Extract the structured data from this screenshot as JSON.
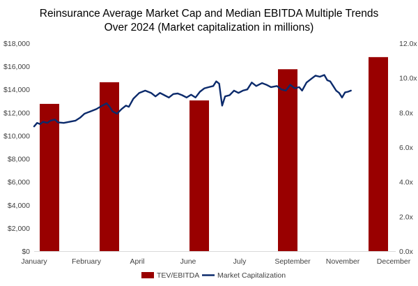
{
  "chart_data": {
    "type": "bar+line",
    "title_lines": [
      "Reinsurance Average Market Cap and Median EBITDA Multiple Trends",
      "Over 2024  (Market capitalization in millions)"
    ],
    "x_tick_labels": [
      "January",
      "February",
      "April",
      "June",
      "July",
      "September",
      "November",
      "December"
    ],
    "y_left": {
      "range": [
        0,
        18000
      ],
      "tick_labels": [
        "$0",
        "$2,000",
        "$4,000",
        "$6,000",
        "$8,000",
        "$10,000",
        "$12,000",
        "$14,000",
        "$16,000",
        "$18,000"
      ]
    },
    "y_right": {
      "range": [
        0,
        12
      ],
      "tick_labels": [
        "0.0x",
        "2.0x",
        "4.0x",
        "6.0x",
        "8.0x",
        "10.0x",
        "12.0x"
      ]
    },
    "grid": false,
    "legend_position": "bottom",
    "bars": {
      "name": "TEV/EBITDA",
      "color": "#990000",
      "axis": "right",
      "categories": [
        "January",
        "February",
        "June",
        "September",
        "December"
      ],
      "values": [
        8.5,
        9.75,
        8.7,
        10.5,
        11.2
      ]
    },
    "line": {
      "name": "Market Capitalization",
      "color": "#0b2a6b",
      "axis": "left",
      "x_unit": "month",
      "points": [
        [
          1.0,
          10800
        ],
        [
          1.1,
          11100
        ],
        [
          1.2,
          11000
        ],
        [
          1.3,
          11200
        ],
        [
          1.45,
          11100
        ],
        [
          1.55,
          11300
        ],
        [
          1.7,
          11400
        ],
        [
          1.8,
          11150
        ],
        [
          2.0,
          11100
        ],
        [
          2.2,
          11200
        ],
        [
          2.4,
          11300
        ],
        [
          2.55,
          11550
        ],
        [
          2.7,
          11900
        ],
        [
          2.9,
          12100
        ],
        [
          3.1,
          12300
        ],
        [
          3.3,
          12600
        ],
        [
          3.45,
          12800
        ],
        [
          3.55,
          12500
        ],
        [
          3.65,
          12100
        ],
        [
          3.8,
          11900
        ],
        [
          3.95,
          12300
        ],
        [
          4.1,
          12600
        ],
        [
          4.2,
          12500
        ],
        [
          4.35,
          13200
        ],
        [
          4.55,
          13700
        ],
        [
          4.75,
          13900
        ],
        [
          4.95,
          13700
        ],
        [
          5.1,
          13400
        ],
        [
          5.25,
          13700
        ],
        [
          5.4,
          13500
        ],
        [
          5.55,
          13300
        ],
        [
          5.7,
          13600
        ],
        [
          5.85,
          13650
        ],
        [
          6.0,
          13500
        ],
        [
          6.15,
          13300
        ],
        [
          6.3,
          13550
        ],
        [
          6.45,
          13300
        ],
        [
          6.6,
          13800
        ],
        [
          6.75,
          14100
        ],
        [
          6.9,
          14200
        ],
        [
          7.05,
          14300
        ],
        [
          7.15,
          14700
        ],
        [
          7.25,
          14500
        ],
        [
          7.3,
          13500
        ],
        [
          7.35,
          12600
        ],
        [
          7.45,
          13400
        ],
        [
          7.6,
          13500
        ],
        [
          7.75,
          13900
        ],
        [
          7.9,
          13700
        ],
        [
          8.05,
          13900
        ],
        [
          8.2,
          14000
        ],
        [
          8.35,
          14600
        ],
        [
          8.5,
          14300
        ],
        [
          8.7,
          14550
        ],
        [
          8.85,
          14400
        ],
        [
          9.0,
          14200
        ],
        [
          9.2,
          14300
        ],
        [
          9.35,
          14000
        ],
        [
          9.5,
          13900
        ],
        [
          9.65,
          14400
        ],
        [
          9.8,
          14100
        ],
        [
          9.95,
          14200
        ],
        [
          10.05,
          13900
        ],
        [
          10.2,
          14600
        ],
        [
          10.35,
          14900
        ],
        [
          10.5,
          15200
        ],
        [
          10.65,
          15100
        ],
        [
          10.8,
          15250
        ],
        [
          10.9,
          14800
        ],
        [
          11.0,
          14700
        ],
        [
          11.1,
          14300
        ],
        [
          11.2,
          13900
        ],
        [
          11.3,
          13700
        ],
        [
          11.4,
          13300
        ],
        [
          11.5,
          13750
        ],
        [
          11.6,
          13800
        ],
        [
          11.7,
          13900
        ]
      ]
    }
  }
}
